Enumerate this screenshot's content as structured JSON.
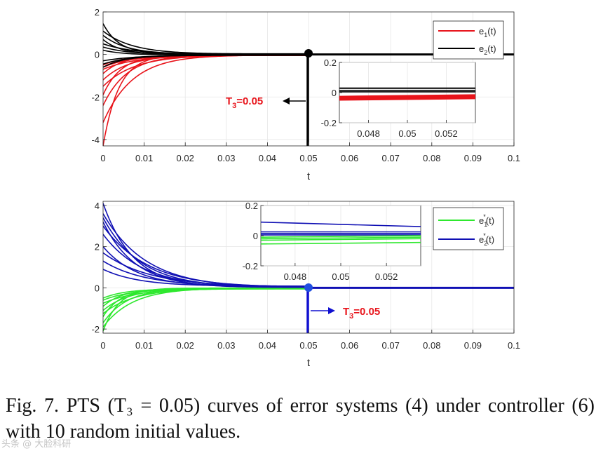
{
  "caption": {
    "text": "Fig. 7. PTS (T₃ = 0.05) curves of error systems (4) under controller (6) with 10 random initial values."
  },
  "watermark": "头条 @ 大脸科研",
  "colors": {
    "red": "#e8141b",
    "black": "#000000",
    "green": "#2ee82e",
    "blue": "#1010b4",
    "blue_marker": "#1f4fe0",
    "annot_red": "#e8141b"
  },
  "chart_data": [
    {
      "type": "line",
      "title": "",
      "xlabel": "t",
      "ylabel": "",
      "xlim": [
        0,
        0.1
      ],
      "ylim": [
        -4.3,
        2
      ],
      "xticks": [
        "0",
        "0.01",
        "0.02",
        "0.03",
        "0.04",
        "0.05",
        "0.06",
        "0.07",
        "0.08",
        "0.09",
        "0.1"
      ],
      "yticks": [
        "2",
        "0",
        "-2",
        "-4"
      ],
      "grid": true,
      "settling_time": 0.05,
      "annotation": {
        "text_main": "T",
        "text_sub": "3",
        "text_rest": "=0.05",
        "x": 0.05,
        "y": -2.2,
        "arrow": "left"
      },
      "legend": {
        "position": "top-right",
        "entries": [
          {
            "name_main": "e",
            "name_sub": "1",
            "name_rest": "(t)",
            "color": "#e8141b"
          },
          {
            "name_main": "e",
            "name_sub": "2",
            "name_rest": "(t)",
            "color": "#000000"
          }
        ]
      },
      "series": [
        {
          "name": "e1(t)",
          "color": "#e8141b",
          "initial_values": [
            -4.3,
            -3.2,
            -2.4,
            -1.9,
            -1.5,
            -1.2,
            -0.9,
            -0.7,
            -0.6,
            -0.5
          ]
        },
        {
          "name": "e2(t)",
          "color": "#000000",
          "initial_values": [
            1.45,
            1.1,
            0.9,
            0.7,
            0.5,
            0.35,
            0.2,
            -0.3,
            -0.45,
            -0.6
          ]
        }
      ],
      "inset": {
        "xlim": [
          0.0465,
          0.0535
        ],
        "ylim": [
          -0.2,
          0.2
        ],
        "xticks": [
          "0.048",
          "0.05",
          "0.052"
        ],
        "yticks": [
          "0.2",
          "0",
          "-0.2"
        ],
        "series": [
          {
            "color": "#000000",
            "values": [
              0.03,
              0.028,
              0.015,
              0.005
            ]
          },
          {
            "color": "#e8141b",
            "values": [
              -0.025,
              -0.03,
              -0.035,
              -0.04,
              -0.045,
              -0.05
            ]
          }
        ]
      }
    },
    {
      "type": "line",
      "title": "",
      "xlabel": "t",
      "ylabel": "",
      "xlim": [
        0,
        0.1
      ],
      "ylim": [
        -2.2,
        4.2
      ],
      "xticks": [
        "0",
        "0.01",
        "0.02",
        "0.03",
        "0.04",
        "0.05",
        "0.06",
        "0.07",
        "0.08",
        "0.09",
        "0.1"
      ],
      "yticks": [
        "4",
        "2",
        "0",
        "-2"
      ],
      "grid": true,
      "settling_time": 0.05,
      "annotation": {
        "text_main": "T",
        "text_sub": "3",
        "text_rest": "=0.05",
        "x": 0.05,
        "y": -1.2,
        "arrow": "right"
      },
      "legend": {
        "position": "top-right",
        "entries": [
          {
            "name_main": "e",
            "name_sub": "1",
            "name_sup": "*",
            "name_rest": "(t)",
            "color": "#2ee82e"
          },
          {
            "name_main": "e",
            "name_sub": "2",
            "name_sup": "*",
            "name_rest": "(t)",
            "color": "#1010b4"
          }
        ]
      },
      "series": [
        {
          "name": "e1*(t)",
          "color": "#2ee82e",
          "initial_values": [
            -2.1,
            -1.9,
            -1.7,
            -1.4,
            -1.25,
            -1.1,
            -0.9,
            -0.75,
            -0.6,
            -0.5
          ]
        },
        {
          "name": "e2*(t)",
          "color": "#1010b4",
          "initial_values": [
            4.1,
            3.6,
            3.4,
            3.2,
            3.0,
            2.6,
            2.0,
            1.7,
            1.3,
            0.9
          ]
        }
      ],
      "inset": {
        "xlim": [
          0.0465,
          0.0535
        ],
        "ylim": [
          -0.2,
          0.2
        ],
        "xticks": [
          "0.048",
          "0.05",
          "0.052"
        ],
        "yticks": [
          "0.2",
          "0",
          "-0.2"
        ],
        "series": [
          {
            "color": "#1010b4",
            "values": [
              0.09,
              0.025,
              0.015,
              0.005
            ]
          },
          {
            "color": "#2ee82e",
            "values": [
              -0.01,
              -0.02,
              -0.03,
              -0.055
            ]
          }
        ]
      }
    }
  ]
}
